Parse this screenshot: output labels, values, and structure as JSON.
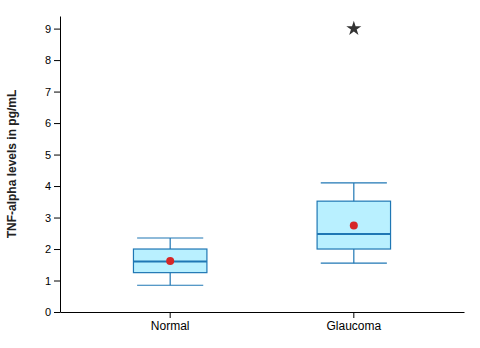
{
  "chart_data": {
    "type": "box",
    "categories": [
      "Normal",
      "Glaucoma"
    ],
    "q1": [
      1.25,
      2.0
    ],
    "median": [
      1.6,
      2.48
    ],
    "q3": [
      2.0,
      3.52
    ],
    "whisker_low": [
      0.85,
      1.55
    ],
    "whisker_high": [
      2.35,
      4.1
    ],
    "mean": [
      1.62,
      2.75
    ],
    "outliers": [
      [],
      [
        9.0
      ]
    ],
    "ylabel": "TNF-alpha levels in pg/mL",
    "ylim": [
      0,
      9.4
    ],
    "yticks": [
      0,
      1,
      2,
      3,
      4,
      5,
      6,
      7,
      8,
      9
    ],
    "grid": false
  }
}
